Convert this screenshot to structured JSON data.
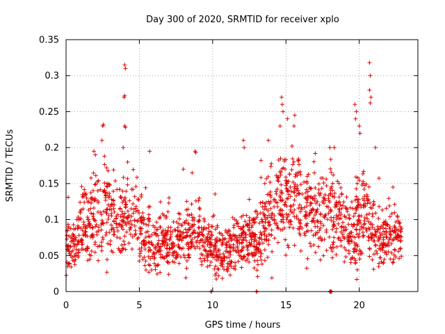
{
  "chart_data": {
    "type": "scatter",
    "title": "Day 300 of 2020, SRMTID for receiver xplo",
    "xlabel": "GPS time / hours",
    "ylabel": "SRMTID / TECUs",
    "xlim": [
      0,
      24
    ],
    "ylim": [
      0,
      0.35
    ],
    "xticks": [
      0,
      5,
      10,
      15,
      20
    ],
    "xtick_labels": [
      "0",
      "5",
      "10",
      "15",
      "20"
    ],
    "yticks": [
      0,
      0.05,
      0.1,
      0.15,
      0.2,
      0.25,
      0.3,
      0.35
    ],
    "ytick_labels": [
      "0",
      "0.05",
      "0.1",
      "0.15",
      "0.2",
      "0.25",
      "0.3",
      "0.35"
    ],
    "grid": true,
    "marker": "plus",
    "color": "#e00000",
    "series": [
      {
        "name": "SRMTID",
        "trend": [
          [
            0.0,
            0.07,
            0.02
          ],
          [
            0.5,
            0.06,
            0.02
          ],
          [
            1.0,
            0.09,
            0.025
          ],
          [
            1.5,
            0.1,
            0.025
          ],
          [
            2.0,
            0.1,
            0.03
          ],
          [
            2.5,
            0.11,
            0.03
          ],
          [
            3.0,
            0.11,
            0.03
          ],
          [
            3.5,
            0.1,
            0.025
          ],
          [
            4.0,
            0.1,
            0.025
          ],
          [
            4.5,
            0.11,
            0.03
          ],
          [
            5.0,
            0.09,
            0.025
          ],
          [
            5.5,
            0.08,
            0.025
          ],
          [
            6.0,
            0.075,
            0.025
          ],
          [
            6.5,
            0.07,
            0.02
          ],
          [
            7.0,
            0.065,
            0.02
          ],
          [
            7.5,
            0.07,
            0.02
          ],
          [
            8.0,
            0.075,
            0.02
          ],
          [
            8.5,
            0.08,
            0.02
          ],
          [
            9.0,
            0.08,
            0.02
          ],
          [
            9.5,
            0.07,
            0.02
          ],
          [
            10.0,
            0.06,
            0.02
          ],
          [
            10.5,
            0.055,
            0.018
          ],
          [
            11.0,
            0.055,
            0.018
          ],
          [
            11.5,
            0.06,
            0.02
          ],
          [
            12.0,
            0.07,
            0.02
          ],
          [
            12.5,
            0.075,
            0.02
          ],
          [
            13.0,
            0.08,
            0.025
          ],
          [
            13.5,
            0.09,
            0.025
          ],
          [
            14.0,
            0.11,
            0.03
          ],
          [
            14.5,
            0.13,
            0.035
          ],
          [
            15.0,
            0.13,
            0.035
          ],
          [
            15.5,
            0.125,
            0.035
          ],
          [
            16.0,
            0.12,
            0.03
          ],
          [
            16.5,
            0.11,
            0.03
          ],
          [
            17.0,
            0.1,
            0.03
          ],
          [
            17.5,
            0.11,
            0.03
          ],
          [
            18.0,
            0.12,
            0.03
          ],
          [
            18.5,
            0.11,
            0.03
          ],
          [
            19.0,
            0.08,
            0.025
          ],
          [
            19.5,
            0.075,
            0.025
          ],
          [
            20.0,
            0.1,
            0.03
          ],
          [
            20.5,
            0.12,
            0.03
          ],
          [
            21.0,
            0.08,
            0.025
          ],
          [
            21.5,
            0.07,
            0.02
          ],
          [
            22.0,
            0.075,
            0.02
          ],
          [
            22.5,
            0.075,
            0.02
          ],
          [
            22.9,
            0.07,
            0.02
          ]
        ],
        "samples_per_hour": 80,
        "peaks": [
          [
            1.9,
            0.195
          ],
          [
            2.0,
            0.19
          ],
          [
            2.5,
            0.23
          ],
          [
            2.55,
            0.232
          ],
          [
            2.45,
            0.21
          ],
          [
            4.0,
            0.315
          ],
          [
            4.05,
            0.31
          ],
          [
            4.0,
            0.272
          ],
          [
            3.95,
            0.27
          ],
          [
            4.0,
            0.23
          ],
          [
            4.05,
            0.228
          ],
          [
            3.9,
            0.2
          ],
          [
            4.2,
            0.18
          ],
          [
            5.7,
            0.195
          ],
          [
            8.8,
            0.195
          ],
          [
            8.85,
            0.193
          ],
          [
            8.6,
            0.165
          ],
          [
            8.0,
            0.17
          ],
          [
            12.1,
            0.21
          ],
          [
            12.15,
            0.2
          ],
          [
            13.8,
            0.21
          ],
          [
            14.7,
            0.27
          ],
          [
            14.75,
            0.26
          ],
          [
            14.8,
            0.25
          ],
          [
            14.6,
            0.23
          ],
          [
            15.1,
            0.24
          ],
          [
            15.6,
            0.245
          ],
          [
            15.55,
            0.23
          ],
          [
            18.0,
            0.2
          ],
          [
            18.3,
            0.2
          ],
          [
            19.7,
            0.26
          ],
          [
            19.8,
            0.25
          ],
          [
            19.75,
            0.24
          ],
          [
            20.0,
            0.23
          ],
          [
            20.05,
            0.22
          ],
          [
            20.7,
            0.318
          ],
          [
            20.75,
            0.3
          ],
          [
            20.7,
            0.28
          ],
          [
            20.8,
            0.27
          ],
          [
            20.75,
            0.262
          ],
          [
            21.1,
            0.2
          ],
          [
            22.3,
            0.145
          ]
        ],
        "zeros": [
          9.9,
          13.0,
          18.0,
          18.05,
          18.1
        ]
      }
    ]
  }
}
